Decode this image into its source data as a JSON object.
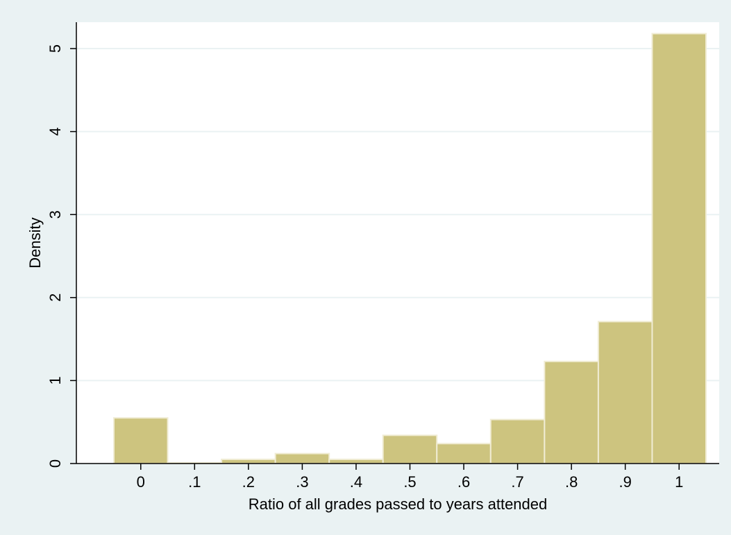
{
  "chart_data": {
    "type": "bar",
    "title": "",
    "xlabel": "Ratio of all grades passed to years attended",
    "ylabel": "Density",
    "xlim": [
      -0.1,
      1.05
    ],
    "ylim": [
      0,
      5.2
    ],
    "bin_width": 0.1,
    "x": [
      0,
      0.1,
      0.2,
      0.3,
      0.4,
      0.5,
      0.6,
      0.7,
      0.8,
      0.9,
      1
    ],
    "values": [
      0.55,
      0.01,
      0.05,
      0.12,
      0.05,
      0.34,
      0.24,
      0.53,
      1.23,
      1.71,
      5.18
    ],
    "xticks": [
      0,
      0.1,
      0.2,
      0.3,
      0.4,
      0.5,
      0.6,
      0.7,
      0.8,
      0.9,
      1
    ],
    "xtick_labels": [
      "0",
      ".1",
      ".2",
      ".3",
      ".4",
      ".5",
      ".6",
      ".7",
      ".8",
      ".9",
      "1"
    ],
    "yticks": [
      0,
      1,
      2,
      3,
      4,
      5
    ],
    "ytick_labels": [
      "0",
      "1",
      "2",
      "3",
      "4",
      "5"
    ],
    "grid": true,
    "colors": {
      "page_background": "#eaf2f3",
      "plot_background": "#ffffff",
      "bar_fill": "#cdc47f",
      "bar_edge": "#f0ecd4",
      "grid": "#eaf2f3",
      "axis": "#000000"
    }
  }
}
